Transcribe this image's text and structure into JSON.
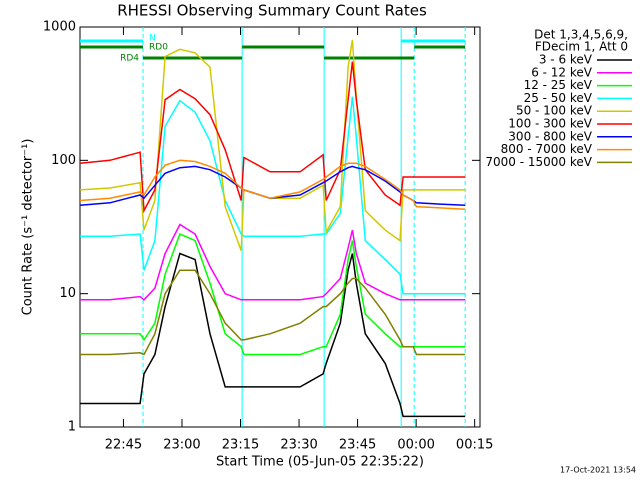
{
  "chart_data": {
    "type": "line",
    "title": "RHESSI Observing Summary Count Rates",
    "xlabel": "Start Time (05-Jun-05 22:35:22)",
    "ylabel": "Count Rate (s⁻¹ detector⁻¹)",
    "legend_header": [
      "Det 1,3,4,5,6,9,",
      "FDecim 1, Att 0"
    ],
    "timestamp": "17-Oct-2021 13:54",
    "log_y": true,
    "xlim": [
      -1.5,
      101
    ],
    "ylim": [
      1,
      1000
    ],
    "yticks": [
      1,
      10,
      100,
      1000
    ],
    "xticks": [
      {
        "value": 9.633,
        "label": "22:45"
      },
      {
        "value": 24.633,
        "label": "23:00"
      },
      {
        "value": 39.633,
        "label": "23:15"
      },
      {
        "value": 54.633,
        "label": "23:30"
      },
      {
        "value": 69.633,
        "label": "23:45"
      },
      {
        "value": 84.633,
        "label": "00:00"
      },
      {
        "value": 99.633,
        "label": "00:15"
      }
    ],
    "x": [
      -1.5,
      6.2,
      13.9,
      14.9,
      17.7,
      20.3,
      24.1,
      28.0,
      31.8,
      35.7,
      39.8,
      40.5,
      47.2,
      54.9,
      60.8,
      61.6,
      65.2,
      67.2,
      68.3,
      69.3,
      71.6,
      76.7,
      80.5,
      81.3,
      83.9,
      84.7,
      90.8,
      97.2
    ],
    "series": [
      {
        "name": "3 - 6 keV",
        "color": "#000000",
        "values": [
          1.5,
          1.5,
          1.5,
          2.5,
          3.5,
          8,
          20,
          18,
          5,
          2,
          2,
          2,
          2,
          2,
          2.5,
          3,
          6,
          15,
          20,
          12,
          5,
          3,
          1.5,
          1.2,
          1.2,
          1.2,
          1.2,
          1.2
        ]
      },
      {
        "name": "6 - 12 keV",
        "color": "#ff00ff",
        "values": [
          9,
          9,
          9.5,
          9,
          11,
          20,
          33,
          28,
          16,
          10,
          9,
          9,
          9,
          9,
          9.5,
          10,
          13,
          22,
          30,
          20,
          12,
          10,
          9,
          9,
          9,
          9,
          9,
          9
        ]
      },
      {
        "name": "12 - 25 keV",
        "color": "#00ff00",
        "values": [
          5,
          5,
          5,
          4.5,
          6,
          14,
          28,
          25,
          12,
          5,
          4,
          3.5,
          3.5,
          3.5,
          4,
          4,
          7,
          18,
          25,
          16,
          7,
          5,
          4,
          4,
          4,
          4,
          4,
          4
        ]
      },
      {
        "name": "25 - 50 keV",
        "color": "#00ffff",
        "values": [
          27,
          27,
          28,
          15,
          25,
          180,
          280,
          230,
          140,
          50,
          28,
          27,
          27,
          27,
          28,
          28,
          40,
          150,
          300,
          150,
          25,
          18,
          14,
          10,
          10,
          10,
          10,
          10
        ]
      },
      {
        "name": "50 - 100 keV",
        "color": "#d2c800",
        "values": [
          60,
          62,
          68,
          30,
          50,
          600,
          680,
          640,
          500,
          45,
          21,
          60,
          52,
          52,
          65,
          29,
          45,
          500,
          800,
          300,
          42,
          30,
          25,
          60,
          60,
          60,
          60,
          60
        ]
      },
      {
        "name": "100 - 300 keV",
        "color": "#ff0000",
        "values": [
          95,
          100,
          115,
          42,
          60,
          285,
          340,
          290,
          220,
          120,
          50,
          105,
          82,
          82,
          110,
          50,
          85,
          285,
          550,
          285,
          85,
          55,
          46,
          75,
          75,
          75,
          75,
          75
        ]
      },
      {
        "name": "300 - 800 keV",
        "color": "#0000ff",
        "values": [
          46,
          48,
          55,
          52,
          65,
          80,
          88,
          90,
          85,
          75,
          62,
          60,
          52,
          55,
          68,
          70,
          82,
          88,
          90,
          88,
          85,
          70,
          58,
          55,
          50,
          48,
          47,
          46
        ]
      },
      {
        "name": "800 - 7000 keV",
        "color": "#ff8c00",
        "values": [
          50,
          52,
          58,
          55,
          75,
          92,
          100,
          98,
          90,
          80,
          62,
          60,
          52,
          58,
          72,
          75,
          90,
          95,
          95,
          95,
          90,
          72,
          60,
          55,
          50,
          45,
          44,
          43
        ]
      },
      {
        "name": "7000 - 15000 keV",
        "color": "#808000",
        "values": [
          3.5,
          3.5,
          3.6,
          3.5,
          5,
          10,
          15,
          15,
          10,
          6,
          4.5,
          4.5,
          5,
          6,
          8,
          8,
          10,
          12,
          13,
          13,
          11,
          7,
          4.5,
          4,
          4,
          3.5,
          3.5,
          3.5
        ]
      }
    ],
    "flags": [
      {
        "label": "N",
        "color": "#00ffff",
        "segments": [
          [
            -1.5,
            14.65
          ],
          [
            80.8,
            97.2
          ]
        ]
      },
      {
        "label": "RD0",
        "color": "#008000",
        "segments": [
          [
            -1.5,
            14.65
          ],
          [
            40.04,
            61.06
          ],
          [
            84.14,
            97.2
          ]
        ]
      },
      {
        "label": "RD4",
        "color": "#008000",
        "segments": [
          [
            14.65,
            40.04
          ],
          [
            61.06,
            84.14
          ]
        ]
      }
    ],
    "vlines": [
      {
        "x": 14.65,
        "dashed": true
      },
      {
        "x": 40.04,
        "dashed": false
      },
      {
        "x": 61.06,
        "dashed": false
      },
      {
        "x": 80.8,
        "dashed": false
      },
      {
        "x": 84.14,
        "dashed": true
      },
      {
        "x": 97.2,
        "dashed": true
      }
    ],
    "vline_color": "#00ffff"
  }
}
